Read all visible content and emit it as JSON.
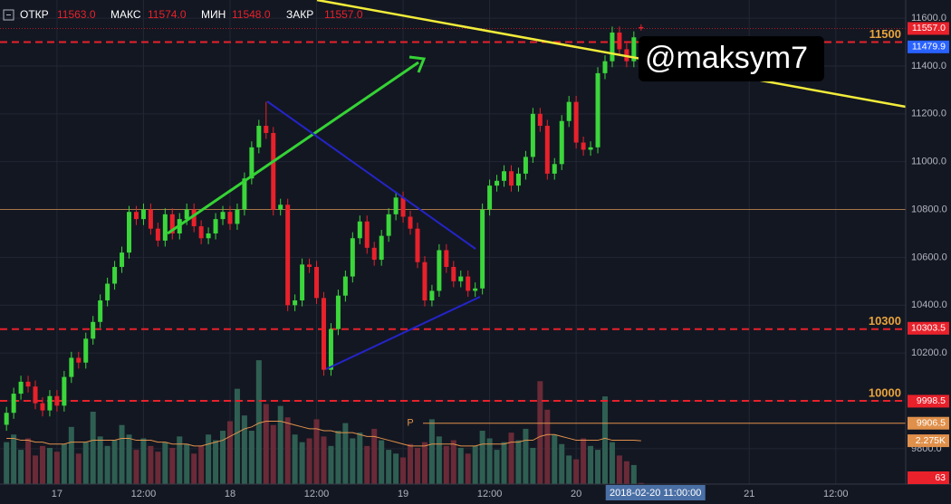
{
  "header": {
    "items": [
      {
        "label": "ОТКР",
        "value": "11563.0"
      },
      {
        "label": "МАКС",
        "value": "11574.0"
      },
      {
        "label": "МИН",
        "value": "11548.0"
      },
      {
        "label": "ЗАКР",
        "value": "11557.0"
      }
    ]
  },
  "watermark": "@maksym7",
  "chart_data": {
    "type": "candlestick",
    "x": [
      -7,
      -6,
      -5,
      -4,
      -3,
      -2,
      -1,
      0,
      1,
      2,
      3,
      4,
      5,
      6,
      7,
      8,
      9,
      10,
      11,
      12,
      13,
      14,
      15,
      16,
      17,
      18,
      19,
      20,
      21,
      22,
      23,
      24,
      25,
      26,
      27,
      28,
      29,
      30,
      31,
      32,
      33,
      34,
      35,
      36,
      37,
      38,
      39,
      40,
      41,
      42,
      43,
      44,
      45,
      46,
      47,
      48,
      49,
      50,
      51,
      52,
      53,
      54,
      55,
      56,
      57,
      58,
      59,
      60,
      61,
      62,
      63,
      64,
      65,
      66,
      67,
      68,
      69,
      70,
      71,
      72,
      73,
      74,
      75,
      76,
      77,
      78,
      79,
      80,
      81
    ],
    "open": [
      9900,
      9950,
      10030,
      10080,
      10060,
      9990,
      9960,
      10020,
      9980,
      10100,
      10180,
      10160,
      10260,
      10330,
      10420,
      10490,
      10560,
      10620,
      10790,
      10760,
      10800,
      10720,
      10670,
      10780,
      10700,
      10760,
      10800,
      10730,
      10680,
      10700,
      10760,
      10790,
      10740,
      10800,
      10930,
      11060,
      11150,
      11120,
      10800,
      10820,
      10400,
      10420,
      10570,
      10560,
      10430,
      10130,
      10300,
      10440,
      10520,
      10680,
      10750,
      10640,
      10590,
      10690,
      10780,
      10850,
      10770,
      10720,
      10580,
      10420,
      10460,
      10630,
      10560,
      10500,
      10520,
      10460,
      10470,
      10800,
      10900,
      10920,
      10960,
      10900,
      10950,
      11020,
      11200,
      11150,
      10950,
      10990,
      11170,
      11250,
      11080,
      11050,
      11060,
      11370,
      11420,
      11540,
      11470,
      11420,
      11563
    ],
    "high": [
      9975,
      10055,
      10105,
      10105,
      10085,
      10015,
      10045,
      10045,
      10125,
      10205,
      10205,
      10285,
      10355,
      10445,
      10515,
      10585,
      10645,
      10815,
      10815,
      10825,
      10825,
      10745,
      10805,
      10805,
      10785,
      10825,
      10825,
      10755,
      10725,
      10785,
      10815,
      10815,
      10825,
      10955,
      11085,
      11175,
      11250,
      11145,
      10845,
      10845,
      10445,
      10595,
      10595,
      10585,
      10455,
      10325,
      10465,
      10545,
      10705,
      10775,
      10775,
      10665,
      10715,
      10805,
      10875,
      10875,
      10795,
      10745,
      10605,
      10485,
      10655,
      10655,
      10585,
      10545,
      10545,
      10495,
      10825,
      10925,
      10945,
      10985,
      10985,
      10975,
      11045,
      11225,
      11225,
      11175,
      11015,
      11195,
      11275,
      11275,
      11105,
      11085,
      11395,
      11445,
      11565,
      11565,
      11495,
      11545,
      11574
    ],
    "low": [
      9875,
      9925,
      10005,
      10035,
      9965,
      9935,
      9935,
      9955,
      9955,
      10075,
      10135,
      10135,
      10235,
      10305,
      10395,
      10465,
      10535,
      10595,
      10735,
      10735,
      10695,
      10645,
      10645,
      10675,
      10675,
      10735,
      10705,
      10655,
      10655,
      10675,
      10735,
      10715,
      10715,
      10775,
      10905,
      11035,
      11095,
      10775,
      10775,
      10375,
      10375,
      10395,
      10535,
      10405,
      10105,
      10105,
      10275,
      10415,
      10495,
      10655,
      10615,
      10565,
      10565,
      10665,
      10755,
      10745,
      10695,
      10555,
      10395,
      10395,
      10435,
      10535,
      10475,
      10475,
      10435,
      10435,
      10445,
      10775,
      10875,
      10895,
      10875,
      10875,
      10925,
      10995,
      11125,
      10925,
      10925,
      10965,
      11145,
      11055,
      11025,
      11025,
      11035,
      11345,
      11395,
      11445,
      11395,
      11395,
      11548
    ],
    "close": [
      9950,
      10030,
      10080,
      10060,
      9990,
      9960,
      10020,
      9980,
      10100,
      10180,
      10160,
      10260,
      10330,
      10420,
      10490,
      10560,
      10620,
      10790,
      10760,
      10800,
      10720,
      10670,
      10780,
      10700,
      10760,
      10800,
      10730,
      10680,
      10700,
      10760,
      10790,
      10740,
      10800,
      10930,
      11060,
      11150,
      11120,
      10800,
      10820,
      10400,
      10420,
      10570,
      10560,
      10430,
      10130,
      10300,
      10440,
      10520,
      10680,
      10750,
      10640,
      10590,
      10690,
      10780,
      10850,
      10770,
      10720,
      10580,
      10420,
      10460,
      10630,
      10560,
      10500,
      10520,
      10460,
      10470,
      10800,
      10900,
      10920,
      10960,
      10900,
      10950,
      11020,
      11200,
      11150,
      10950,
      10990,
      11170,
      11250,
      11080,
      11050,
      11060,
      11370,
      11420,
      11540,
      11470,
      11420,
      11520,
      11557
    ],
    "up_color": "#3bd63b",
    "down_color": "#e8212b",
    "xlim": [
      -7.9,
      117.7
    ],
    "xticks": [
      {
        "value": 0,
        "label": "17"
      },
      {
        "value": 12,
        "label": "12:00"
      },
      {
        "value": 24,
        "label": "18"
      },
      {
        "value": 36,
        "label": "12:00"
      },
      {
        "value": 48,
        "label": "19"
      },
      {
        "value": 60,
        "label": "12:00"
      },
      {
        "value": 72,
        "label": "20"
      },
      {
        "value": 96,
        "label": "21"
      },
      {
        "value": 108,
        "label": "12:00"
      }
    ],
    "crosshair_x": {
      "value": 83,
      "label": "2018-02-20 11:00:00"
    },
    "ylim": [
      9652,
      11676
    ],
    "yticks": [
      {
        "value": 9800,
        "label": "9800.0"
      },
      {
        "value": 10000,
        "label": "10000.0"
      },
      {
        "value": 10200,
        "label": "10200.0"
      },
      {
        "value": 10400,
        "label": "10400.0"
      },
      {
        "value": 10600,
        "label": "10600.0"
      },
      {
        "value": 10800,
        "label": "10800.0"
      },
      {
        "value": 11000,
        "label": "11000.0"
      },
      {
        "value": 11200,
        "label": "11200.0"
      },
      {
        "value": 11400,
        "label": "11400.0"
      },
      {
        "value": 11600,
        "label": "11600.0"
      }
    ],
    "grid": true,
    "levels": [
      {
        "value": 11500,
        "label": "11500",
        "color": "#e8212b",
        "dashed": true
      },
      {
        "value": 10300,
        "label": "10300",
        "color": "#e8212b",
        "dashed": true
      },
      {
        "value": 10000,
        "label": "10000",
        "color": "#e8212b",
        "dashed": true
      },
      {
        "value": 10800,
        "color": "#c98a4b",
        "dashed": false
      }
    ],
    "marker": {
      "label": "P",
      "x": 49,
      "value": 9906.5,
      "color": "#e0904a"
    },
    "badges": [
      {
        "value": 11557,
        "label": "11557.0",
        "color": "#e8212b"
      },
      {
        "value": 11479.9,
        "label": "11479.9",
        "color": "#2962ff"
      },
      {
        "value": 10303.5,
        "label": "10303.5",
        "color": "#e8212b"
      },
      {
        "value": 9998.5,
        "label": "9998.5",
        "color": "#e8212b"
      },
      {
        "value": 9906.5,
        "label": "9906.5",
        "color": "#e0904a"
      }
    ],
    "volume": {
      "ylim": [
        0,
        25.4
      ],
      "up_color": "#2f5f52",
      "down_color": "#6a2a37",
      "ma_color": "#e0904a",
      "values": [
        2.2,
        2.6,
        1.8,
        2.4,
        1.5,
        2.0,
        1.9,
        1.7,
        2.1,
        3.0,
        1.6,
        2.2,
        3.8,
        2.5,
        2.0,
        2.3,
        3.1,
        2.6,
        1.8,
        2.4,
        2.0,
        1.7,
        2.2,
        1.9,
        2.5,
        2.1,
        1.6,
        2.0,
        2.6,
        2.3,
        2.8,
        3.3,
        5.0,
        3.6,
        2.8,
        6.5,
        4.2,
        3.1,
        4.1,
        3.5,
        2.6,
        2.2,
        2.4,
        3.4,
        2.5,
        2.0,
        2.8,
        3.2,
        2.4,
        2.7,
        2.0,
        2.9,
        2.3,
        1.8,
        1.6,
        1.4,
        2.1,
        1.9,
        2.2,
        3.4,
        2.5,
        2.0,
        2.3,
        1.9,
        1.6,
        2.0,
        2.8,
        2.4,
        1.8,
        2.2,
        2.7,
        2.3,
        2.9,
        1.9,
        5.4,
        3.9,
        2.6,
        2.1,
        1.5,
        1.3,
        2.4,
        2.0,
        1.8,
        4.6,
        2.2,
        1.5,
        1.2,
        1.0,
        0.063
      ],
      "ma": [
        2.4,
        2.4,
        2.3,
        2.3,
        2.2,
        2.2,
        2.1,
        2.1,
        2.1,
        2.2,
        2.2,
        2.2,
        2.3,
        2.3,
        2.3,
        2.3,
        2.4,
        2.4,
        2.3,
        2.3,
        2.3,
        2.2,
        2.2,
        2.1,
        2.1,
        2.1,
        2.0,
        2.0,
        2.1,
        2.2,
        2.3,
        2.5,
        2.7,
        2.9,
        3.0,
        3.2,
        3.3,
        3.3,
        3.3,
        3.2,
        3.1,
        3.0,
        2.9,
        2.9,
        2.8,
        2.8,
        2.7,
        2.7,
        2.7,
        2.6,
        2.5,
        2.5,
        2.4,
        2.3,
        2.2,
        2.1,
        2.0,
        2.0,
        2.0,
        2.1,
        2.1,
        2.1,
        2.1,
        2.0,
        2.0,
        2.0,
        2.1,
        2.1,
        2.1,
        2.1,
        2.2,
        2.2,
        2.3,
        2.3,
        2.5,
        2.6,
        2.6,
        2.5,
        2.4,
        2.3,
        2.3,
        2.3,
        2.3,
        2.4,
        2.3,
        2.3,
        2.3,
        2.3,
        2.275
      ],
      "badges": [
        {
          "value": 2.275,
          "label": "2.275K",
          "color": "#e0904a"
        },
        {
          "value": 0.063,
          "label": "63",
          "color": "#e8212b"
        }
      ]
    }
  }
}
